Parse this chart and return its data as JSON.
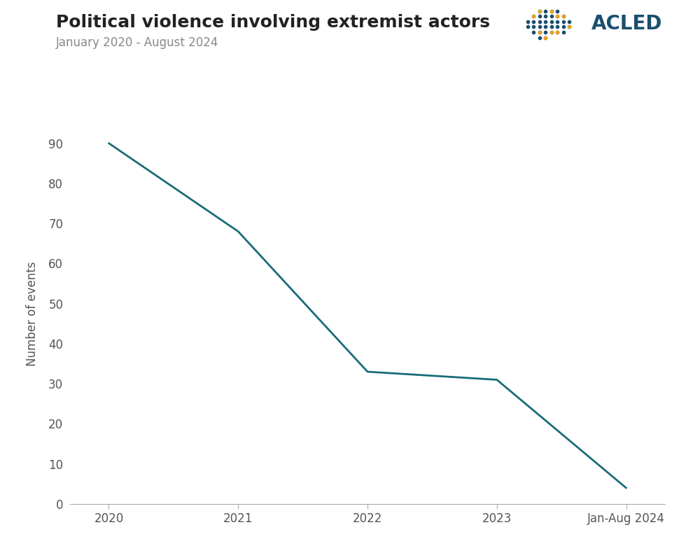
{
  "title": "Political violence involving extremist actors",
  "subtitle": "January 2020 - August 2024",
  "x_labels": [
    "2020",
    "2021",
    "2022",
    "2023",
    "Jan-Aug 2024"
  ],
  "x_values": [
    0,
    1,
    2,
    3,
    4
  ],
  "y_values": [
    90,
    68,
    33,
    31,
    4
  ],
  "line_color": "#1a6b7a",
  "line_width": 2.0,
  "ylabel": "Number of events",
  "ylim": [
    0,
    95
  ],
  "yticks": [
    0,
    10,
    20,
    30,
    40,
    50,
    60,
    70,
    80,
    90
  ],
  "title_fontsize": 18,
  "subtitle_fontsize": 12,
  "ylabel_fontsize": 12,
  "tick_fontsize": 12,
  "background_color": "#ffffff",
  "title_color": "#222222",
  "subtitle_color": "#888888",
  "acled_text_color": "#1a4e6e",
  "acled_fontsize": 20
}
